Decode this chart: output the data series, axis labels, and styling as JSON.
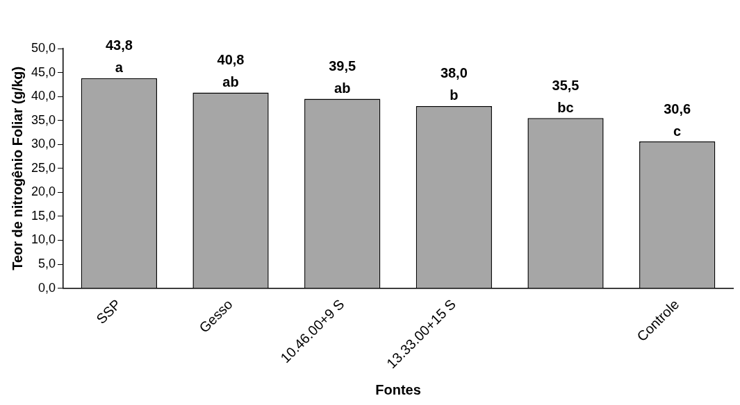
{
  "chart_data": {
    "type": "bar",
    "xlabel": "Fontes",
    "ylabel": "Teor de nitrogênio Foliar (g/kg)",
    "categories": [
      "SSP",
      "Gesso",
      "10.46.00+9 S",
      "13.33.00+15 S",
      null,
      "Controle"
    ],
    "values": [
      43.8,
      40.8,
      39.5,
      38.0,
      35.5,
      30.6
    ],
    "value_labels": [
      "43,8\na",
      "40,8\nab",
      "39,5\nab",
      "38,0\nb",
      "35,5\nbc",
      "30,6\nc"
    ],
    "color": "#a6a6a6",
    "grid": false,
    "legend": false,
    "ylim": [
      0,
      50
    ],
    "yticks": [
      {
        "value": 0,
        "label": "0,0"
      },
      {
        "value": 5,
        "label": "5,0"
      },
      {
        "value": 10,
        "label": "10,0"
      },
      {
        "value": 15,
        "label": "15,0"
      },
      {
        "value": 20,
        "label": "20,0"
      },
      {
        "value": 25,
        "label": "25,0"
      },
      {
        "value": 30,
        "label": "30,0"
      },
      {
        "value": 35,
        "label": "35,0"
      },
      {
        "value": 40,
        "label": "40,0"
      },
      {
        "value": 45,
        "label": "45,0"
      },
      {
        "value": 50,
        "label": "50,0"
      }
    ]
  }
}
